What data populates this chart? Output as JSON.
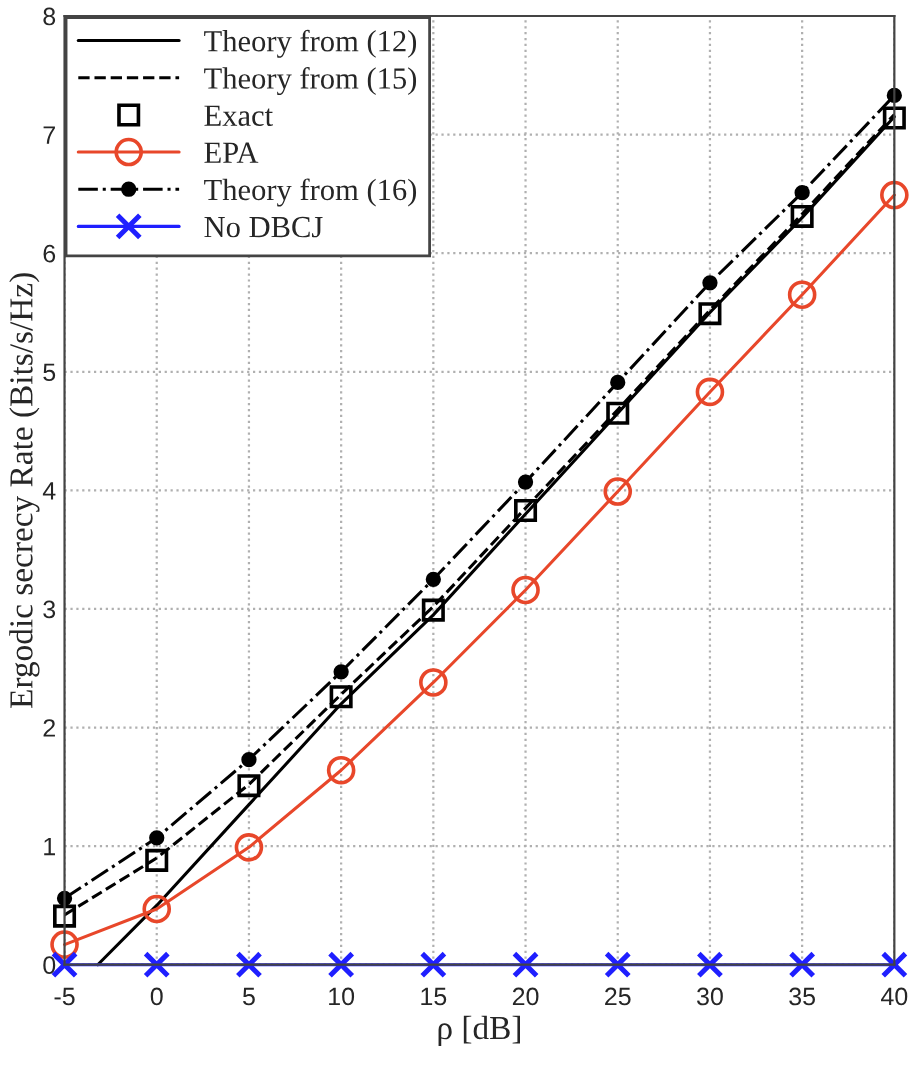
{
  "chart_data": {
    "type": "line",
    "xlabel": "ρ [dB]",
    "ylabel": "Ergodic secrecy Rate (Bits/s/Hz)",
    "x": [
      -5,
      0,
      5,
      10,
      15,
      20,
      25,
      30,
      35,
      40
    ],
    "xlim": [
      -5,
      40
    ],
    "xticks": [
      -5,
      0,
      5,
      10,
      15,
      20,
      25,
      30,
      35,
      40
    ],
    "ylim": [
      0,
      8
    ],
    "yticks": [
      0,
      1,
      2,
      3,
      4,
      5,
      6,
      7,
      8
    ],
    "grid": true,
    "legend": "top left",
    "series": [
      {
        "name": "Theory from (12)",
        "color": "#000000",
        "line_style": "solid",
        "marker": "none",
        "x": [
          -3.2,
          0,
          5,
          10,
          15,
          20,
          25,
          30,
          35,
          40
        ],
        "values": [
          0,
          0.5,
          1.35,
          2.2,
          2.95,
          3.8,
          4.65,
          5.5,
          6.3,
          7.15
        ]
      },
      {
        "name": "Theory from (15)",
        "color": "#000000",
        "line_style": "dashed",
        "marker": "none",
        "values": [
          0.42,
          0.9,
          1.52,
          2.28,
          3.02,
          3.85,
          4.68,
          5.52,
          6.33,
          7.17
        ]
      },
      {
        "name": "Exact",
        "type": "scatter",
        "color": "#000000",
        "marker": "square",
        "values": [
          0.41,
          0.88,
          1.51,
          2.26,
          2.99,
          3.83,
          4.65,
          5.49,
          6.31,
          7.14
        ]
      },
      {
        "name": "EPA",
        "color": "#e8472a",
        "line_style": "solid",
        "marker": "circle",
        "values": [
          0.17,
          0.47,
          0.99,
          1.64,
          2.38,
          3.16,
          3.99,
          4.83,
          5.65,
          6.49
        ]
      },
      {
        "name": "Theory from (16)",
        "color": "#000000",
        "line_style": "dashdot",
        "marker": "dot",
        "values": [
          0.56,
          1.07,
          1.73,
          2.47,
          3.25,
          4.07,
          4.91,
          5.75,
          6.51,
          7.33
        ]
      },
      {
        "name": "No DBCJ",
        "color": "#1f1fff",
        "line_style": "solid",
        "marker": "cross",
        "values": [
          0,
          0,
          0,
          0,
          0,
          0,
          0,
          0,
          0,
          0
        ]
      }
    ]
  }
}
